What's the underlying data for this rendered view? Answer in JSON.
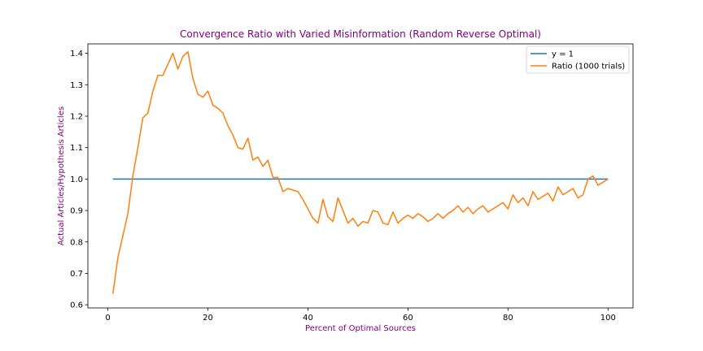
{
  "chart_data": {
    "type": "line",
    "title": "Convergence Ratio with Varied Misinformation (Random Reverse Optimal)",
    "xlabel": "Percent of Optimal Sources",
    "ylabel": "Actual Articles/Hypothesis Articles",
    "xlim": [
      -4,
      105
    ],
    "ylim": [
      0.59,
      1.43
    ],
    "x_ticks": [
      0,
      20,
      40,
      60,
      80,
      100
    ],
    "y_ticks": [
      0.6,
      0.7,
      0.8,
      0.9,
      1.0,
      1.1,
      1.2,
      1.3,
      1.4
    ],
    "x_tick_labels": [
      "0",
      "20",
      "40",
      "60",
      "80",
      "100"
    ],
    "y_tick_labels": [
      "0.6",
      "0.7",
      "0.8",
      "0.9",
      "1.0",
      "1.1",
      "1.2",
      "1.3",
      "1.4"
    ],
    "grid": false,
    "legend_position": "top-right",
    "colors": {
      "title": "#800080",
      "axis_labels": "#800080"
    },
    "series": [
      {
        "name": "y = 1",
        "color": "#1f77b4",
        "x": [
          1,
          100
        ],
        "y": [
          1.0,
          1.0
        ]
      },
      {
        "name": "Ratio (1000 trials)",
        "color": "#ff7f0e",
        "x": [
          1,
          2,
          3,
          4,
          5,
          6,
          7,
          8,
          9,
          10,
          11,
          12,
          13,
          14,
          15,
          16,
          17,
          18,
          19,
          20,
          21,
          22,
          23,
          24,
          25,
          26,
          27,
          28,
          29,
          30,
          31,
          32,
          33,
          34,
          35,
          36,
          37,
          38,
          39,
          40,
          41,
          42,
          43,
          44,
          45,
          46,
          47,
          48,
          49,
          50,
          51,
          52,
          53,
          54,
          55,
          56,
          57,
          58,
          59,
          60,
          61,
          62,
          63,
          64,
          65,
          66,
          67,
          68,
          69,
          70,
          71,
          72,
          73,
          74,
          75,
          76,
          77,
          78,
          79,
          80,
          81,
          82,
          83,
          84,
          85,
          86,
          87,
          88,
          89,
          90,
          91,
          92,
          93,
          94,
          95,
          96,
          97,
          98,
          99,
          100
        ],
        "y": [
          0.635,
          0.75,
          0.82,
          0.89,
          1.01,
          1.1,
          1.195,
          1.21,
          1.28,
          1.33,
          1.33,
          1.365,
          1.4,
          1.35,
          1.39,
          1.405,
          1.32,
          1.27,
          1.26,
          1.28,
          1.235,
          1.225,
          1.21,
          1.17,
          1.14,
          1.1,
          1.095,
          1.13,
          1.06,
          1.07,
          1.04,
          1.06,
          1.005,
          1.005,
          0.96,
          0.97,
          0.965,
          0.96,
          0.935,
          0.905,
          0.875,
          0.86,
          0.935,
          0.88,
          0.865,
          0.94,
          0.9,
          0.86,
          0.875,
          0.85,
          0.865,
          0.86,
          0.9,
          0.895,
          0.86,
          0.855,
          0.895,
          0.86,
          0.875,
          0.885,
          0.875,
          0.89,
          0.88,
          0.865,
          0.875,
          0.89,
          0.875,
          0.89,
          0.9,
          0.915,
          0.895,
          0.91,
          0.89,
          0.905,
          0.915,
          0.895,
          0.905,
          0.915,
          0.925,
          0.905,
          0.95,
          0.925,
          0.94,
          0.915,
          0.96,
          0.935,
          0.945,
          0.955,
          0.93,
          0.975,
          0.95,
          0.96,
          0.97,
          0.94,
          0.95,
          1.0,
          1.01,
          0.98,
          0.99,
          1.0
        ]
      }
    ]
  }
}
